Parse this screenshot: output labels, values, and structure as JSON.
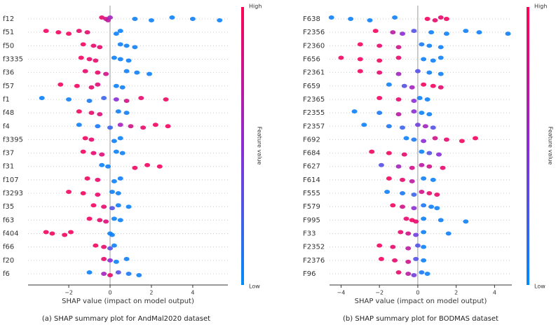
{
  "chart_data": [
    {
      "type": "beeswarm",
      "title": "(a) SHAP summary plot for AndMal2020 dataset",
      "xlabel": "SHAP value (impact on model output)",
      "colorbar_label": "Feature value",
      "colorbar_high": "High",
      "colorbar_low": "Low",
      "colors": {
        "low": "#008bfb",
        "mid": "#8c2bd6",
        "high": "#ff0052"
      },
      "xlim": [
        -3.97,
        5.7
      ],
      "xticks": [
        {
          "value": -2,
          "label": "−2"
        },
        0,
        2,
        4
      ],
      "categories": [
        "f12",
        "f51",
        "f50",
        "f3335",
        "f36",
        "f57",
        "f1",
        "f48",
        "f4",
        "f3395",
        "f37",
        "f31",
        "f107",
        "f3293",
        "f35",
        "f63",
        "f404",
        "f66",
        "f20",
        "f6"
      ],
      "shap": [
        [
          -0.4,
          -0.2,
          -0.1,
          0,
          1.2,
          2,
          3,
          4,
          5.3
        ],
        [
          -3.1,
          -2.5,
          -2,
          -1.5,
          -1.1,
          0.3,
          0.5
        ],
        [
          -1.3,
          -0.8,
          -0.5,
          0.5,
          0.8,
          1.2
        ],
        [
          -1.4,
          -1,
          -0.7,
          0.2,
          0.5,
          0.9
        ],
        [
          -1.2,
          -0.6,
          -0.2,
          0.8,
          1.3,
          1.9
        ],
        [
          -2.4,
          -1.6,
          -0.9,
          -0.6,
          0.3,
          0.6
        ],
        [
          -3.3,
          -2,
          -1,
          -0.3,
          0.3,
          0.8,
          1.5,
          2.7
        ],
        [
          -1.5,
          -0.9,
          -0.5,
          0.4,
          0.8
        ],
        [
          -1.5,
          -0.6,
          0,
          0.5,
          1,
          1.6,
          2.2,
          2.8
        ],
        [
          -1.2,
          -0.9,
          0.2,
          0.5
        ],
        [
          -1.3,
          -0.8,
          -0.4,
          0.3,
          0.6
        ],
        [
          -0.4,
          -0.1,
          1.2,
          1.8,
          2.4
        ],
        [
          -1.1,
          -0.6,
          0.2,
          0.5
        ],
        [
          -2,
          -1.3,
          -0.6,
          0.1,
          0.4
        ],
        [
          -0.8,
          -0.3,
          0.1,
          0.4,
          0.9
        ],
        [
          -1,
          -0.5,
          -0.2,
          0.2,
          0.5
        ],
        [
          -3.1,
          -2.8,
          -2.2,
          -1.9,
          0,
          0.1
        ],
        [
          -0.7,
          -0.3,
          0,
          0.2
        ],
        [
          -0.3,
          0,
          0.3,
          0.8
        ],
        [
          -1,
          -0.3,
          0,
          0.4,
          0.9,
          1.4
        ]
      ],
      "feature_values": [
        [
          0.9,
          0.8,
          0.7,
          0.6,
          0.05,
          0.05,
          0.05,
          0.05,
          0.05
        ],
        [
          0.95,
          0.95,
          0.95,
          0.9,
          0.9,
          0.05,
          0.05
        ],
        [
          0.95,
          0.9,
          0.9,
          0.05,
          0.05,
          0.05
        ],
        [
          0.95,
          0.9,
          0.9,
          0.05,
          0.05,
          0.05
        ],
        [
          0.9,
          0.9,
          0.8,
          0.05,
          0.05,
          0.05
        ],
        [
          0.95,
          0.95,
          0.9,
          0.85,
          0.05,
          0.05
        ],
        [
          0.05,
          0.05,
          0.1,
          0.2,
          0.5,
          0.8,
          0.9,
          0.95
        ],
        [
          0.95,
          0.9,
          0.85,
          0.05,
          0.05
        ],
        [
          0.05,
          0.1,
          0.2,
          0.6,
          0.8,
          0.9,
          0.95,
          0.95
        ],
        [
          0.95,
          0.9,
          0.05,
          0.05
        ],
        [
          0.95,
          0.9,
          0.85,
          0.05,
          0.05
        ],
        [
          0.05,
          0.05,
          0.95,
          0.95,
          0.95
        ],
        [
          0.95,
          0.9,
          0.05,
          0.05
        ],
        [
          0.95,
          0.95,
          0.9,
          0.05,
          0.05
        ],
        [
          0.95,
          0.9,
          0.3,
          0.05,
          0.05
        ],
        [
          0.95,
          0.9,
          0.85,
          0.05,
          0.05
        ],
        [
          0.95,
          0.95,
          0.95,
          0.95,
          0.05,
          0.05
        ],
        [
          0.95,
          0.9,
          0.3,
          0.05
        ],
        [
          0.9,
          0.5,
          0.05,
          0.05
        ],
        [
          0.05,
          0.6,
          0.9,
          0.3,
          0.1,
          0.05
        ]
      ]
    },
    {
      "type": "beeswarm",
      "title": "(b) SHAP summary plot for BODMAS dataset",
      "xlabel": "SHAP value (impact on model output)",
      "colorbar_label": "Feature value",
      "colorbar_high": "High",
      "colorbar_low": "Low",
      "colors": {
        "low": "#008bfb",
        "mid": "#8c2bd6",
        "high": "#ff0052"
      },
      "xlim": [
        -4.6,
        4.9
      ],
      "xticks": [
        {
          "value": -4,
          "label": "−4"
        },
        {
          "value": -2,
          "label": "−2"
        },
        0,
        2,
        4
      ],
      "categories": [
        "F638",
        "F2356",
        "F2360",
        "F656",
        "F2361",
        "F659",
        "F2365",
        "F2355",
        "F2357",
        "F692",
        "F684",
        "F627",
        "F614",
        "F555",
        "F579",
        "F995",
        "F33",
        "F2352",
        "F2376",
        "F96"
      ],
      "shap": [
        [
          -4.5,
          -3.5,
          -2.5,
          -1.2,
          0.5,
          0.9,
          1.2,
          1.5
        ],
        [
          -2.2,
          -1.3,
          -0.8,
          -0.2,
          0.7,
          1.5,
          2.5,
          3.2,
          4.7
        ],
        [
          -3,
          -2,
          -1,
          0.2,
          0.6,
          1.2
        ],
        [
          -4,
          -3,
          -2,
          -1,
          0.3,
          0.8,
          1.2
        ],
        [
          -3,
          -2,
          -1,
          0,
          0.6,
          1.2
        ],
        [
          -1.5,
          -0.7,
          -0.3,
          0.3,
          0.8,
          1.2
        ],
        [
          -2,
          -1,
          -0.2,
          0.1,
          0.5
        ],
        [
          -3.3,
          -2,
          -1,
          -0.2,
          0.2,
          0.6
        ],
        [
          -2.8,
          -1.5,
          -0.8,
          0,
          0.4,
          0.8
        ],
        [
          -0.6,
          -0.2,
          0.3,
          0.9,
          1.5,
          2.3,
          3
        ],
        [
          -2.4,
          -1.5,
          -0.7,
          0.2,
          0.6,
          1.1
        ],
        [
          -1.9,
          -1,
          -0.3,
          0.2,
          0.6,
          1.3
        ],
        [
          -1.5,
          -0.8,
          -0.3,
          0.3,
          0.8
        ],
        [
          -1.6,
          -0.8,
          -0.2,
          0.2,
          0.6,
          1
        ],
        [
          -1.3,
          -0.8,
          -0.2,
          0.3,
          0.7,
          1
        ],
        [
          -0.6,
          -0.3,
          -0.1,
          0.3,
          1.2,
          2.5
        ],
        [
          -0.9,
          -0.5,
          -0.1,
          0.3,
          1.6
        ],
        [
          -2,
          -1.3,
          -0.5,
          0,
          0.3
        ],
        [
          -1.9,
          -1.2,
          -0.5,
          -0.1,
          0.3
        ],
        [
          -1,
          -0.5,
          -0.2,
          0.2,
          0.5
        ]
      ],
      "feature_values": [
        [
          0.05,
          0.05,
          0.05,
          0.05,
          0.95,
          0.9,
          0.9,
          0.95
        ],
        [
          0.95,
          0.7,
          0.5,
          0.3,
          0.05,
          0.05,
          0.05,
          0.05,
          0.05
        ],
        [
          0.95,
          0.9,
          0.8,
          0.1,
          0.05,
          0.05
        ],
        [
          0.95,
          0.95,
          0.95,
          0.9,
          0.05,
          0.05,
          0.05
        ],
        [
          0.95,
          0.9,
          0.6,
          0.3,
          0.05,
          0.05
        ],
        [
          0.05,
          0.3,
          0.6,
          0.95,
          0.95,
          0.9
        ],
        [
          0.95,
          0.9,
          0.5,
          0.05,
          0.05
        ],
        [
          0.05,
          0.1,
          0.7,
          0.5,
          0.05,
          0.05
        ],
        [
          0.05,
          0.1,
          0.2,
          0.4,
          0.6,
          0.3
        ],
        [
          0.05,
          0.1,
          0.5,
          0.8,
          0.9,
          0.95,
          0.95
        ],
        [
          0.95,
          0.95,
          0.9,
          0.05,
          0.3,
          0.5
        ],
        [
          0.3,
          0.6,
          0.8,
          0.7,
          0.8,
          0.9
        ],
        [
          0.95,
          0.9,
          0.7,
          0.05,
          0.05
        ],
        [
          0.05,
          0.1,
          0.2,
          0.8,
          0.9,
          0.9
        ],
        [
          0.95,
          0.8,
          0.5,
          0.1,
          0.05,
          0.05
        ],
        [
          0.9,
          0.95,
          0.9,
          0.05,
          0.05,
          0.05
        ],
        [
          0.9,
          0.8,
          0.4,
          0.05,
          0.05
        ],
        [
          0.95,
          0.9,
          0.7,
          0.3,
          0.05
        ],
        [
          0.95,
          0.9,
          0.8,
          0.3,
          0.05
        ],
        [
          0.9,
          0.7,
          0.4,
          0.1,
          0.05
        ]
      ]
    }
  ]
}
